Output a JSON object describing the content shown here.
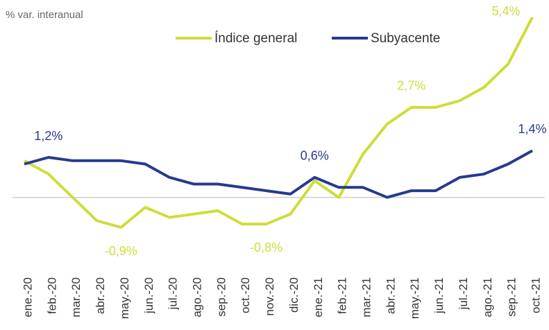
{
  "chart_data": {
    "type": "line",
    "y_label": "% var. interanual",
    "categories": [
      "ene.-20",
      "feb.-20",
      "mar.-20",
      "abr.-20",
      "may.-20",
      "jun.-20",
      "jul.-20",
      "ago.-20",
      "sep.-20",
      "oct.-20",
      "nov.-20",
      "dic.-20",
      "ene.-21",
      "feb.-21",
      "mar.-21",
      "abr.-21",
      "may.-21",
      "jun.-21",
      "jul.-21",
      "ago.-21",
      "sep.-21",
      "oct.-21"
    ],
    "series": [
      {
        "name": "Índice general",
        "color": "#cfdc3a",
        "values": [
          1.1,
          0.7,
          0.0,
          -0.7,
          -0.9,
          -0.3,
          -0.6,
          -0.5,
          -0.4,
          -0.8,
          -0.8,
          -0.5,
          0.5,
          0.0,
          1.3,
          2.2,
          2.7,
          2.7,
          2.9,
          3.3,
          4.0,
          5.4
        ],
        "value_labels": [
          null,
          null,
          null,
          null,
          "-0,9%",
          null,
          null,
          null,
          null,
          null,
          "-0,8%",
          null,
          null,
          null,
          null,
          null,
          "2,7%",
          null,
          null,
          null,
          null,
          "5,4%"
        ]
      },
      {
        "name": "Subyacente",
        "color": "#263a8f",
        "values": [
          1.0,
          1.2,
          1.1,
          1.1,
          1.1,
          1.0,
          0.6,
          0.4,
          0.4,
          0.3,
          0.2,
          0.1,
          0.6,
          0.3,
          0.3,
          0.0,
          0.2,
          0.2,
          0.6,
          0.7,
          1.0,
          1.4
        ],
        "value_labels": [
          null,
          "1,2%",
          null,
          null,
          null,
          null,
          null,
          null,
          null,
          null,
          null,
          null,
          "0,6%",
          null,
          null,
          null,
          null,
          null,
          null,
          null,
          null,
          "1,4%"
        ]
      }
    ]
  }
}
